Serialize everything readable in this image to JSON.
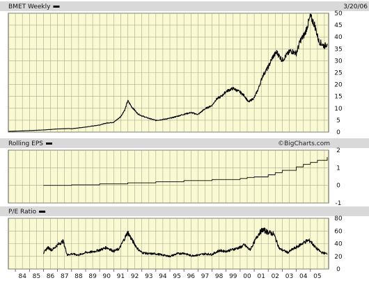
{
  "chart_data": [
    {
      "type": "line",
      "panel": "price",
      "title": "BMET Weekly",
      "date_label": "3/20/06",
      "yticks": [
        0,
        5,
        10,
        15,
        20,
        25,
        30,
        35,
        40,
        45,
        50
      ],
      "ylim": [
        0,
        50
      ],
      "xlabels": [
        "84",
        "85",
        "86",
        "87",
        "88",
        "89",
        "90",
        "91",
        "92",
        "93",
        "94",
        "95",
        "96",
        "97",
        "98",
        "99",
        "00",
        "01",
        "02",
        "03",
        "04",
        "05"
      ],
      "grid": true,
      "series": [
        {
          "name": "BMET Weekly",
          "x": [
            1983.5,
            1984,
            1985,
            1986,
            1987,
            1987.8,
            1988,
            1989,
            1990,
            1990.5,
            1991,
            1991.5,
            1991.8,
            1992,
            1992.3,
            1992.7,
            1993,
            1993.5,
            1994,
            1994.5,
            1995,
            1995.5,
            1996,
            1996.5,
            1997,
            1997.5,
            1998,
            1998.3,
            1998.7,
            1999,
            1999.5,
            2000,
            2000.3,
            2000.6,
            2001,
            2001.3,
            2001.6,
            2002,
            2002.3,
            2002.6,
            2003,
            2003.3,
            2003.6,
            2004,
            2004.3,
            2004.6,
            2004.8,
            2005,
            2005.3,
            2005.6,
            2006,
            2006.2
          ],
          "y": [
            0.3,
            0.4,
            0.6,
            0.9,
            1.3,
            1.5,
            1.4,
            2.1,
            3.0,
            3.8,
            4.1,
            6.5,
            9.5,
            13.2,
            10.5,
            7.8,
            6.8,
            5.8,
            4.9,
            5.3,
            5.8,
            6.6,
            7.5,
            8.2,
            7.4,
            9.8,
            11.2,
            13.8,
            15.2,
            17.1,
            18.4,
            16.8,
            15.3,
            12.6,
            14.4,
            18.2,
            23.6,
            27.3,
            31.4,
            33.6,
            30.2,
            32.4,
            34.2,
            33.1,
            38.6,
            41.2,
            44.8,
            48.6,
            45.2,
            38.3,
            36.1,
            37.2
          ]
        }
      ]
    },
    {
      "type": "line",
      "panel": "eps",
      "title": "Rolling EPS",
      "credit": "©BigCharts.com",
      "yticks": [
        -1,
        0,
        1,
        2
      ],
      "ylim": [
        -1,
        2
      ],
      "grid": true,
      "series": [
        {
          "name": "Rolling EPS",
          "x": [
            1986,
            1988,
            1990,
            1992,
            1994,
            1996,
            1998,
            2000,
            2000.5,
            2001,
            2002,
            2002.5,
            2003,
            2004,
            2004.5,
            2005,
            2005.5,
            2006.2
          ],
          "y": [
            0.0,
            0.03,
            0.08,
            0.14,
            0.2,
            0.27,
            0.33,
            0.39,
            0.45,
            0.48,
            0.6,
            0.72,
            0.85,
            1.05,
            1.2,
            1.3,
            1.42,
            1.6
          ]
        }
      ]
    },
    {
      "type": "line",
      "panel": "pe",
      "title": "P/E Ratio",
      "yticks": [
        0,
        20,
        40,
        60,
        80
      ],
      "ylim": [
        0,
        80
      ],
      "grid": true,
      "series": [
        {
          "name": "P/E Ratio",
          "x": [
            1986,
            1986.3,
            1986.6,
            1987,
            1987.4,
            1987.7,
            1988,
            1988.5,
            1989,
            1989.5,
            1990,
            1990.5,
            1991,
            1991.4,
            1991.7,
            1992,
            1992.3,
            1992.7,
            1993,
            1993.5,
            1994,
            1994.5,
            1995,
            1995.5,
            1996,
            1996.5,
            1997,
            1997.5,
            1998,
            1998.5,
            1999,
            1999.5,
            2000,
            2000.3,
            2000.7,
            2001,
            2001.3,
            2001.6,
            2002,
            2002.4,
            2002.8,
            2003,
            2003.4,
            2003.8,
            2004,
            2004.4,
            2004.8,
            2005,
            2005.4,
            2005.8,
            2006.2
          ],
          "y": [
            25,
            34,
            30,
            38,
            44,
            22,
            24,
            22,
            26,
            27,
            30,
            34,
            28,
            32,
            45,
            58,
            46,
            32,
            26,
            24,
            24,
            22,
            20,
            24,
            25,
            21,
            22,
            24,
            23,
            29,
            28,
            31,
            34,
            38,
            30,
            42,
            55,
            62,
            58,
            55,
            32,
            30,
            26,
            32,
            34,
            40,
            45,
            44,
            33,
            26,
            24
          ]
        }
      ]
    }
  ]
}
